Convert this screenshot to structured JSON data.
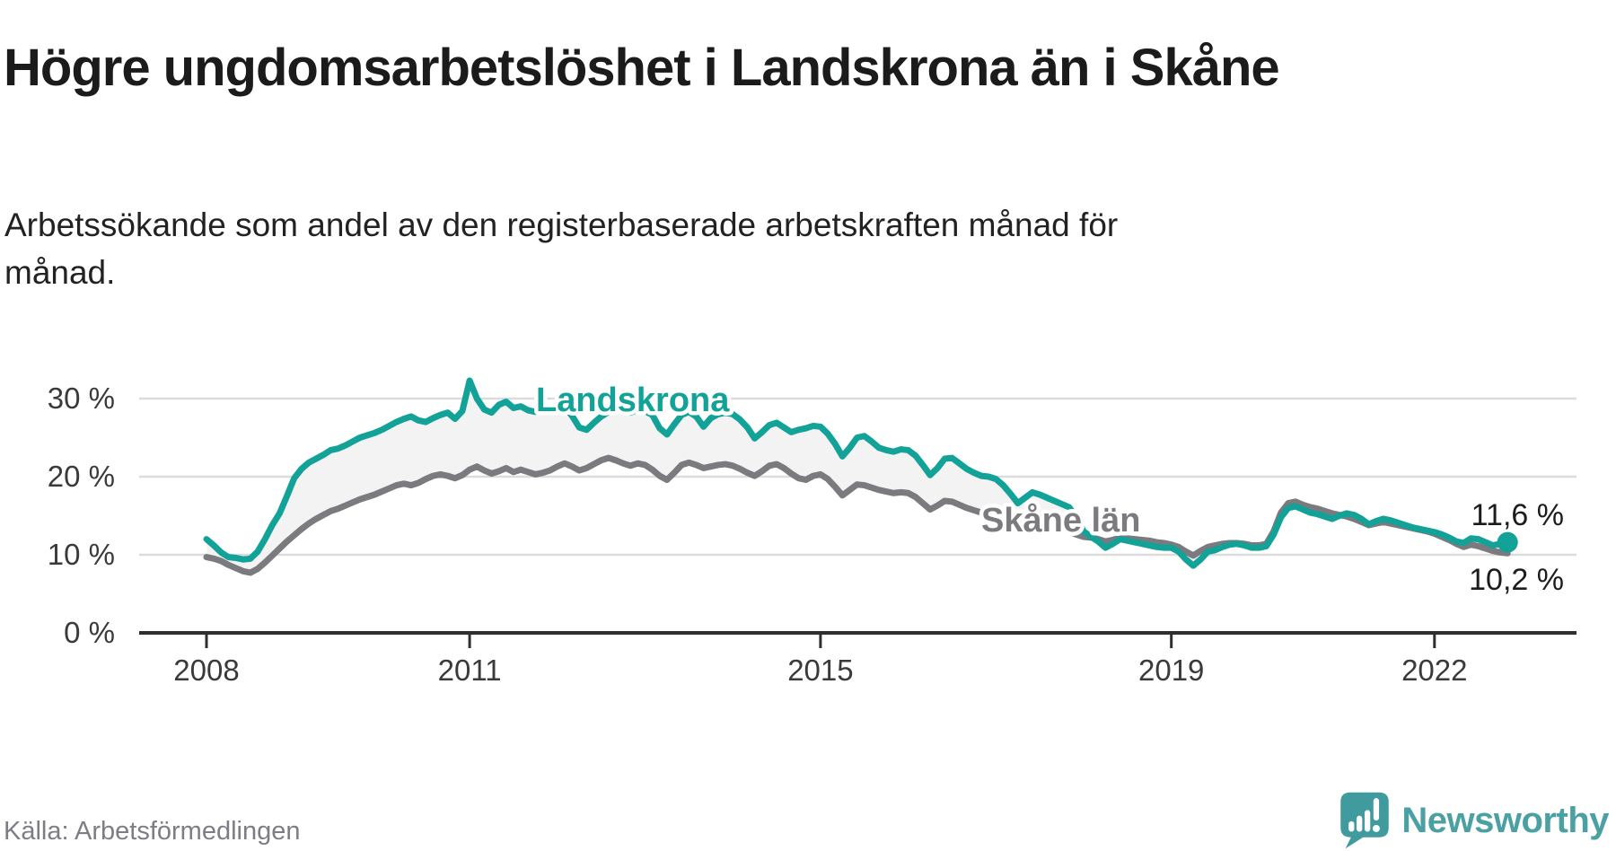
{
  "header": {
    "title": "Högre ungdomsarbetslöshet i Landskrona än i Skåne",
    "subtitle": "Arbetssökande som andel av den registerbaserade arbetskraften månad för månad."
  },
  "footer": {
    "source": "Källa: Arbetsförmedlingen",
    "brand": "Newsworthy"
  },
  "colors": {
    "accent_teal": "#12a297",
    "series_gray": "#7a7a7f",
    "band_fill": "#f3f3f4",
    "grid": "#dcdcdc",
    "axis": "#2f2f2f",
    "tick_text": "#3a3a3a",
    "value_text": "#1c1c1c",
    "logo_teal": "#3f9b9e",
    "brand_text": "#4ba0a3"
  },
  "chart_data": {
    "type": "line",
    "title": "Högre ungdomsarbetslöshet i Landskrona än i Skåne",
    "subtitle": "Arbetssökande som andel av den registerbaserade arbetskraften månad för månad.",
    "x_unit": "month",
    "start": {
      "year": 2008,
      "month": 1
    },
    "end": {
      "year": 2022,
      "month": 11
    },
    "xticks": [
      2008,
      2011,
      2015,
      2019,
      2022
    ],
    "xtick_labels": [
      "2008",
      "2011",
      "2015",
      "2019",
      "2022"
    ],
    "yticks": [
      0,
      10,
      20,
      30
    ],
    "ytick_labels": [
      "0 %",
      "10 %",
      "20 %",
      "30 %"
    ],
    "ylim": [
      0,
      34
    ],
    "grid": "horizontal",
    "legend_position": "inline-labels",
    "band_between_series": true,
    "series": [
      {
        "name": "Landskrona",
        "color": "#12a297",
        "end_label": "11,6 %",
        "end_value": 11.6,
        "end_dot": true,
        "values": [
          12.0,
          11.2,
          10.3,
          9.7,
          9.6,
          9.4,
          9.5,
          10.4,
          12.0,
          13.8,
          15.3,
          17.5,
          19.8,
          21.0,
          21.8,
          22.3,
          22.8,
          23.4,
          23.6,
          24.0,
          24.5,
          25.0,
          25.3,
          25.6,
          26.0,
          26.5,
          27.0,
          27.4,
          27.7,
          27.2,
          27.0,
          27.5,
          27.9,
          28.2,
          27.4,
          28.4,
          32.3,
          30.0,
          28.6,
          28.2,
          29.2,
          29.6,
          28.8,
          29.0,
          28.5,
          28.3,
          28.6,
          28.4,
          28.7,
          28.9,
          27.8,
          26.3,
          26.0,
          26.9,
          27.7,
          28.3,
          28.8,
          28.5,
          28.2,
          28.6,
          28.4,
          27.9,
          26.2,
          25.4,
          26.7,
          27.9,
          28.3,
          27.7,
          26.4,
          27.5,
          28.0,
          28.2,
          28.0,
          27.3,
          26.3,
          24.9,
          25.7,
          26.6,
          26.9,
          26.3,
          25.7,
          26.0,
          26.2,
          26.5,
          26.4,
          25.5,
          24.2,
          22.6,
          23.7,
          25.0,
          25.2,
          24.5,
          23.7,
          23.4,
          23.2,
          23.5,
          23.4,
          22.7,
          21.5,
          20.2,
          21.1,
          22.3,
          22.4,
          21.7,
          21.0,
          20.5,
          20.1,
          20.0,
          19.7,
          18.9,
          17.8,
          16.6,
          17.3,
          18.0,
          17.7,
          17.3,
          16.9,
          16.5,
          16.1,
          14.8,
          13.0,
          12.3,
          11.7,
          10.9,
          11.4,
          12.0,
          11.8,
          11.6,
          11.4,
          11.2,
          11.0,
          10.9,
          10.9,
          10.4,
          9.4,
          8.6,
          9.4,
          10.4,
          10.6,
          11.0,
          11.3,
          11.4,
          11.2,
          10.9,
          10.9,
          11.1,
          12.6,
          14.8,
          16.0,
          16.2,
          15.8,
          15.4,
          15.2,
          14.9,
          14.6,
          15.0,
          15.3,
          15.1,
          14.6,
          13.9,
          14.3,
          14.6,
          14.4,
          14.1,
          13.8,
          13.5,
          13.3,
          13.1,
          12.9,
          12.6,
          12.2,
          11.7,
          11.5,
          12.1,
          12.0,
          11.6,
          11.2,
          11.4,
          11.6
        ]
      },
      {
        "name": "Skåne län",
        "color": "#7a7a7f",
        "end_label": "10,2 %",
        "end_value": 10.2,
        "end_dot": false,
        "values": [
          9.7,
          9.5,
          9.2,
          8.7,
          8.3,
          7.9,
          7.7,
          8.2,
          9.0,
          9.9,
          10.8,
          11.7,
          12.5,
          13.3,
          14.0,
          14.6,
          15.1,
          15.6,
          15.9,
          16.3,
          16.7,
          17.1,
          17.4,
          17.7,
          18.1,
          18.5,
          18.9,
          19.1,
          18.9,
          19.2,
          19.7,
          20.1,
          20.3,
          20.1,
          19.8,
          20.2,
          20.9,
          21.3,
          20.8,
          20.4,
          20.7,
          21.1,
          20.6,
          20.9,
          20.6,
          20.3,
          20.5,
          20.8,
          21.3,
          21.7,
          21.3,
          20.8,
          21.1,
          21.6,
          22.1,
          22.4,
          22.1,
          21.7,
          21.4,
          21.7,
          21.5,
          20.9,
          20.1,
          19.6,
          20.5,
          21.5,
          21.8,
          21.5,
          21.1,
          21.3,
          21.5,
          21.6,
          21.4,
          21.0,
          20.5,
          20.1,
          20.7,
          21.4,
          21.6,
          21.1,
          20.4,
          19.8,
          19.6,
          20.1,
          20.3,
          19.7,
          18.7,
          17.6,
          18.3,
          19.0,
          18.9,
          18.6,
          18.3,
          18.1,
          17.9,
          18.0,
          17.9,
          17.4,
          16.6,
          15.8,
          16.3,
          16.9,
          16.8,
          16.4,
          16.0,
          15.7,
          15.4,
          15.3,
          15.1,
          14.8,
          14.3,
          13.9,
          14.1,
          14.4,
          14.2,
          13.9,
          13.6,
          13.3,
          13.0,
          12.6,
          12.3,
          12.2,
          12.0,
          11.7,
          11.9,
          12.2,
          12.1,
          12.0,
          11.9,
          11.8,
          11.6,
          11.5,
          11.3,
          11.0,
          10.4,
          9.9,
          10.5,
          11.0,
          11.2,
          11.4,
          11.5,
          11.5,
          11.4,
          11.2,
          11.2,
          11.4,
          13.0,
          15.4,
          16.6,
          16.8,
          16.4,
          16.1,
          15.9,
          15.6,
          15.3,
          15.1,
          14.9,
          14.6,
          14.2,
          13.8,
          14.0,
          14.2,
          14.0,
          13.8,
          13.6,
          13.4,
          13.2,
          13.0,
          12.7,
          12.3,
          11.9,
          11.4,
          11.0,
          11.3,
          11.1,
          10.8,
          10.5,
          10.3,
          10.2
        ]
      }
    ]
  }
}
